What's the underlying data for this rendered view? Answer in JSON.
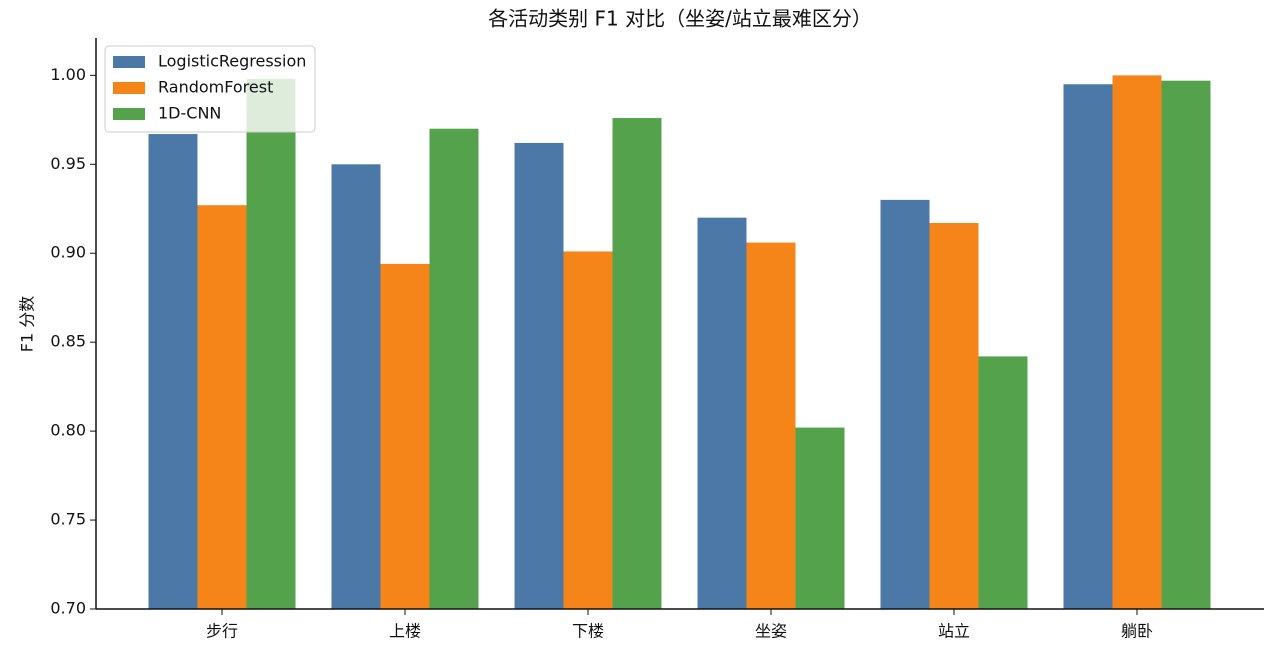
{
  "chart_data": {
    "type": "bar",
    "title": "各活动类别 F1 对比（坐姿/站立最难区分）",
    "ylabel": "F1 分数",
    "categories": [
      "步行",
      "上楼",
      "下楼",
      "坐姿",
      "站立",
      "躺卧"
    ],
    "series": [
      {
        "name": "LogisticRegression",
        "color": "#4c78a8",
        "values": [
          0.967,
          0.95,
          0.962,
          0.92,
          0.93,
          0.995
        ]
      },
      {
        "name": "RandomForest",
        "color": "#f58518",
        "values": [
          0.927,
          0.894,
          0.901,
          0.906,
          0.917,
          1.0
        ]
      },
      {
        "name": "1D-CNN",
        "color": "#54a24b",
        "values": [
          0.998,
          0.97,
          0.976,
          0.802,
          0.842,
          0.997
        ]
      }
    ],
    "ylim": [
      0.7,
      1.021
    ],
    "yticks": [
      {
        "value": 0.7,
        "label": "0.70"
      },
      {
        "value": 0.75,
        "label": "0.75"
      },
      {
        "value": 0.8,
        "label": "0.80"
      },
      {
        "value": 0.85,
        "label": "0.85"
      },
      {
        "value": 0.9,
        "label": "0.90"
      },
      {
        "value": 0.95,
        "label": "0.95"
      },
      {
        "value": 1.0,
        "label": "1.00"
      }
    ],
    "legend": "upper left",
    "grid": false
  }
}
